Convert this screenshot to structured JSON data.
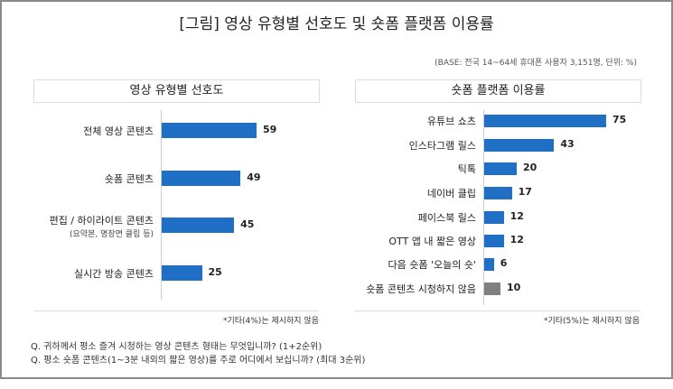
{
  "title": "[그림] 영상 유형별 선호도 및 숏폼 플랫폼 이용률",
  "base_note": "(BASE: 전국 14~64세 휴대폰 사용자 3,151명, 단위: %)",
  "chart_data": [
    {
      "type": "bar",
      "orientation": "horizontal",
      "title": "영상 유형별 선호도",
      "categories": [
        "전체 영상 콘텐츠",
        "숏폼 콘텐츠",
        "편집 / 하이라이트 콘텐츠",
        "실시간 방송 콘텐츠"
      ],
      "category_notes": [
        "",
        "",
        "(요약본, 명장면 클립 등)",
        ""
      ],
      "values": [
        59,
        49,
        45,
        25
      ],
      "colors": [
        "#1f6fc4",
        "#1f6fc4",
        "#1f6fc4",
        "#1f6fc4"
      ],
      "footnote": "*기타(4%)는 제시하지 않음"
    },
    {
      "type": "bar",
      "orientation": "horizontal",
      "title": "숏폼 플랫폼 이용률",
      "categories": [
        "유튜브 쇼츠",
        "인스타그램 릴스",
        "틱톡",
        "네이버 클립",
        "페이스북 릴스",
        "OTT 앱 내 짧은 영상",
        "다음 숏폼 '오늘의 숏'",
        "숏폼 콘텐츠 시청하지 않음"
      ],
      "values": [
        75,
        43,
        20,
        17,
        12,
        12,
        6,
        10
      ],
      "colors": [
        "#1f6fc4",
        "#1f6fc4",
        "#1f6fc4",
        "#1f6fc4",
        "#1f6fc4",
        "#1f6fc4",
        "#1f6fc4",
        "#808080"
      ],
      "footnote": "*기타(5%)는 제시하지 않음"
    }
  ],
  "questions": [
    "Q. 귀하께서 평소 즐겨 시청하는 영상 콘텐츠 형태는 무엇입니까? (1+2순위)",
    "Q. 평소 숏폼 콘텐츠(1~3분 내외의 짧은 영상)를 주로 어디에서 보십니까? (최대 3순위)"
  ]
}
